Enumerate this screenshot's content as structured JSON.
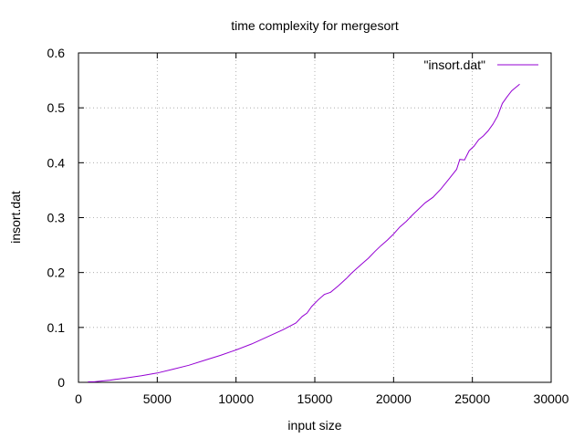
{
  "chart_data": {
    "type": "line",
    "title": "time complexity for mergesort",
    "xlabel": "input size",
    "ylabel": "insort.dat",
    "xlim": [
      0,
      30000
    ],
    "ylim": [
      0,
      0.6
    ],
    "x_ticks": [
      0,
      5000,
      10000,
      15000,
      20000,
      25000,
      30000
    ],
    "y_ticks": [
      0,
      0.1,
      0.2,
      0.3,
      0.4,
      0.5,
      0.6
    ],
    "grid": true,
    "legend_position": "top-right",
    "series": [
      {
        "name": "\"insort.dat\"",
        "color": "#9400D3",
        "x": [
          600,
          1000,
          2000,
          3000,
          4000,
          5000,
          6000,
          7000,
          8000,
          9000,
          10000,
          11000,
          12000,
          13000,
          13800,
          14200,
          14500,
          14800,
          15200,
          15600,
          16000,
          16500,
          17000,
          17300,
          17600,
          18000,
          18400,
          18800,
          19200,
          19600,
          20000,
          20400,
          20800,
          21200,
          21600,
          22000,
          22500,
          23000,
          23500,
          24000,
          24200,
          24500,
          24800,
          25100,
          25400,
          25700,
          26000,
          26300,
          26600,
          26900,
          27200,
          27500,
          28000
        ],
        "y": [
          0.001,
          0.001,
          0.004,
          0.008,
          0.012,
          0.017,
          0.024,
          0.031,
          0.04,
          0.049,
          0.059,
          0.07,
          0.083,
          0.096,
          0.108,
          0.12,
          0.126,
          0.138,
          0.15,
          0.16,
          0.164,
          0.176,
          0.189,
          0.198,
          0.206,
          0.216,
          0.226,
          0.238,
          0.249,
          0.259,
          0.27,
          0.283,
          0.293,
          0.305,
          0.316,
          0.327,
          0.337,
          0.352,
          0.37,
          0.388,
          0.406,
          0.405,
          0.422,
          0.43,
          0.442,
          0.449,
          0.458,
          0.47,
          0.485,
          0.508,
          0.52,
          0.531,
          0.543
        ]
      }
    ]
  }
}
